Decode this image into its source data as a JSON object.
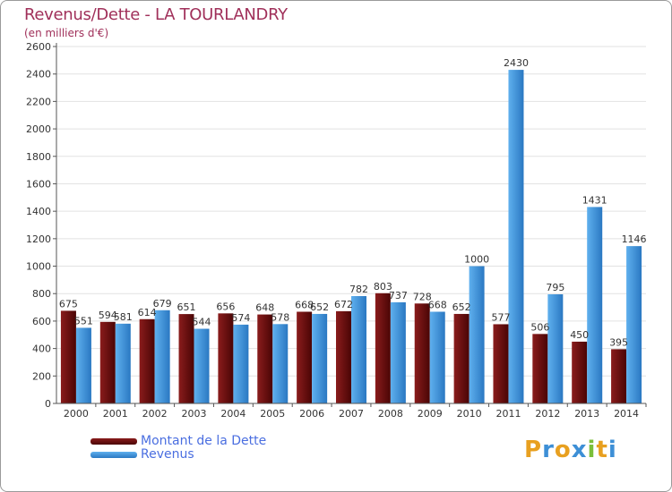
{
  "colors": {
    "dette": "#6b0f0f",
    "revenus": "#3d8fd6",
    "title": "#a0305a",
    "legend": "#4a6ee0"
  },
  "chart_data": {
    "type": "bar",
    "title": "Revenus/Dette - LA TOURLANDRY",
    "subtitle": "(en milliers d'€)",
    "xlabel": "",
    "ylabel": "",
    "ylim": [
      0,
      2600
    ],
    "yticks": [
      0,
      200,
      400,
      600,
      800,
      1000,
      1200,
      1400,
      1600,
      1800,
      2000,
      2200,
      2400,
      2600
    ],
    "categories": [
      "2000",
      "2001",
      "2002",
      "2003",
      "2004",
      "2005",
      "2006",
      "2007",
      "2008",
      "2009",
      "2010",
      "2011",
      "2012",
      "2013",
      "2014"
    ],
    "series": [
      {
        "name": "Montant de la Dette",
        "values": [
          675,
          594,
          614,
          651,
          656,
          648,
          668,
          672,
          803,
          728,
          652,
          577,
          506,
          450,
          395
        ]
      },
      {
        "name": "Revenus",
        "values": [
          551,
          581,
          679,
          544,
          574,
          578,
          652,
          782,
          737,
          668,
          1000,
          2430,
          795,
          1431,
          1146
        ]
      }
    ],
    "legend_position": "bottom-left"
  },
  "logo": {
    "letters": [
      "P",
      "r",
      "o",
      "x",
      "i",
      "t",
      "i"
    ],
    "colors": [
      "#e8a020",
      "#3d8fd6",
      "#e8a020",
      "#3d8fd6",
      "#7bbf3a",
      "#e8a020",
      "#3d8fd6"
    ]
  }
}
